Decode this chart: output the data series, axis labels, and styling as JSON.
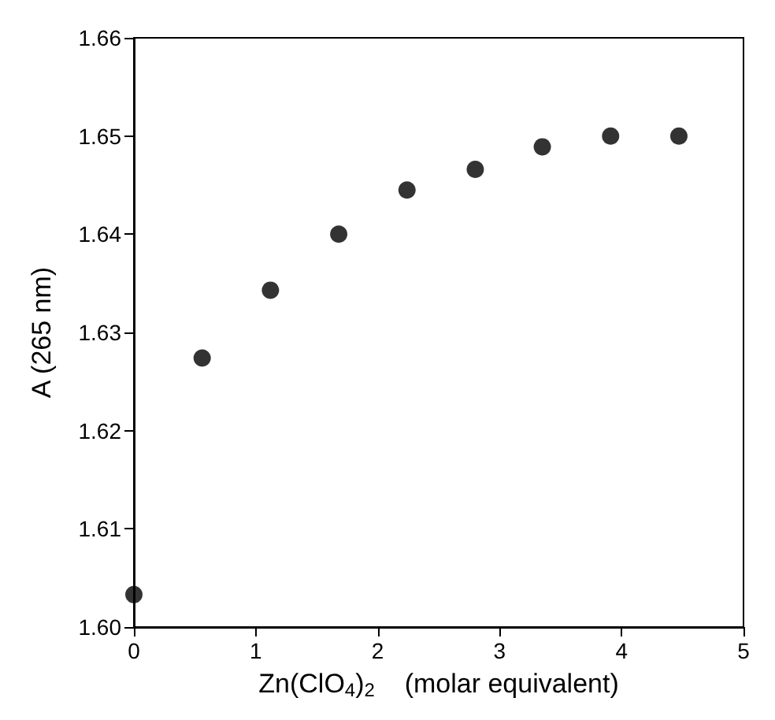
{
  "chart_data": {
    "type": "scatter",
    "xlabel": "Zn(ClO$_{4}$)$_{2}$    (molar equivalent)",
    "ylabel": "A (265 nm)",
    "x": [
      0,
      0.56,
      1.12,
      1.68,
      2.24,
      2.8,
      3.35,
      3.91,
      4.47
    ],
    "series": [
      {
        "color": "#000000",
        "values": [
          1.6033,
          1.6274,
          1.6343,
          1.64,
          1.6445,
          1.6466,
          1.6489,
          1.65,
          1.65
        ]
      }
    ],
    "xlim": [
      0,
      5
    ],
    "xticks": [
      0,
      1,
      2,
      3,
      4,
      5
    ],
    "ylim": [
      1.6,
      1.66
    ],
    "yticks": [
      {
        "value": 1.6,
        "label": "1.60"
      },
      1.61,
      1.62,
      1.63,
      1.64,
      1.65,
      1.66
    ],
    "grid": false,
    "marker": "circle"
  }
}
